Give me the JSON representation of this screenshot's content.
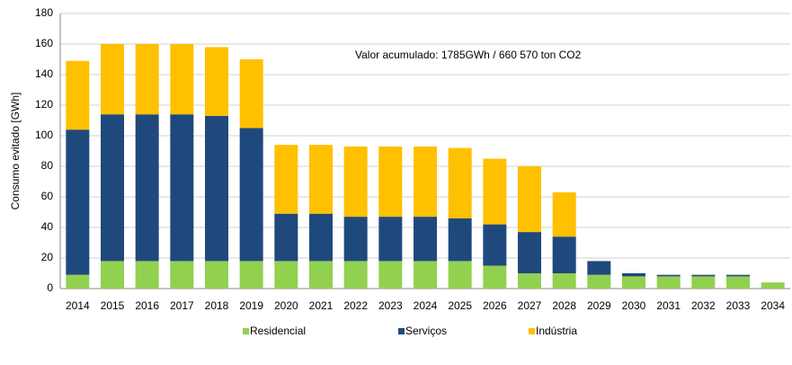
{
  "chart_data": {
    "type": "stacked_bar",
    "annotation": "Valor acumulado: 1785GWh / 660 570 ton CO2",
    "y_label": "Consumo evitado [GWh]",
    "categories": [
      "2014",
      "2015",
      "2016",
      "2017",
      "2018",
      "2019",
      "2020",
      "2021",
      "2022",
      "2023",
      "2024",
      "2025",
      "2026",
      "2027",
      "2028",
      "2029",
      "2030",
      "2031",
      "2032",
      "2033",
      "2034"
    ],
    "series": [
      {
        "name": "Residencial",
        "color": "#92d050",
        "values": [
          9,
          18,
          18,
          18,
          18,
          18,
          18,
          18,
          18,
          18,
          18,
          18,
          15,
          10,
          10,
          9,
          8,
          8,
          8,
          8,
          4
        ]
      },
      {
        "name": "Serviços",
        "color": "#1f497d",
        "values": [
          95,
          96,
          96,
          96,
          95,
          87,
          31,
          31,
          29,
          29,
          29,
          28,
          27,
          27,
          24,
          9,
          2,
          1,
          1,
          1,
          0
        ]
      },
      {
        "name": "Indústria",
        "color": "#ffc000",
        "values": [
          45,
          46,
          46,
          46,
          45,
          45,
          45,
          45,
          46,
          46,
          46,
          46,
          43,
          43,
          29,
          0,
          0,
          0,
          0,
          0,
          0
        ]
      }
    ],
    "ylim": [
      0,
      180
    ],
    "yticks": [
      0,
      20,
      40,
      60,
      80,
      100,
      120,
      140,
      160,
      180
    ],
    "grid": true
  }
}
